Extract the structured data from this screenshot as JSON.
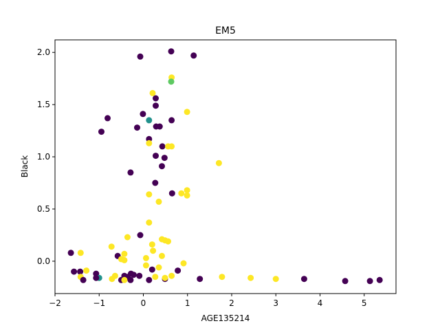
{
  "chart_data": {
    "type": "scatter",
    "title": "EM5",
    "xlabel": "AGE135214",
    "ylabel": "Black",
    "xlim": [
      -2.0,
      5.72
    ],
    "ylim": [
      -0.31,
      2.12
    ],
    "grid": false,
    "x_ticks": [
      "−2",
      "−1",
      "0",
      "1",
      "2",
      "3",
      "4",
      "5"
    ],
    "x_tick_values": [
      -2,
      -1,
      0,
      1,
      2,
      3,
      4,
      5
    ],
    "y_ticks": [
      "0.0",
      "0.5",
      "1.0",
      "1.5",
      "2.0"
    ],
    "y_tick_values": [
      0.0,
      0.5,
      1.0,
      1.5,
      2.0
    ],
    "colors": {
      "purple": "#440154",
      "teal": "#21918c",
      "green": "#5ec962",
      "yellow": "#fde725"
    },
    "points": [
      {
        "x": 0.63,
        "y": 2.01,
        "c": "purple"
      },
      {
        "x": 1.14,
        "y": 1.97,
        "c": "purple"
      },
      {
        "x": -0.07,
        "y": 1.96,
        "c": "purple"
      },
      {
        "x": 0.64,
        "y": 1.76,
        "c": "yellow"
      },
      {
        "x": 0.63,
        "y": 1.72,
        "c": "green"
      },
      {
        "x": 0.21,
        "y": 1.61,
        "c": "yellow"
      },
      {
        "x": 0.28,
        "y": 1.56,
        "c": "purple"
      },
      {
        "x": 0.28,
        "y": 1.49,
        "c": "purple"
      },
      {
        "x": 0.99,
        "y": 1.43,
        "c": "yellow"
      },
      {
        "x": -0.01,
        "y": 1.41,
        "c": "purple"
      },
      {
        "x": -0.81,
        "y": 1.37,
        "c": "purple"
      },
      {
        "x": 0.13,
        "y": 1.35,
        "c": "teal"
      },
      {
        "x": 0.64,
        "y": 1.35,
        "c": "purple"
      },
      {
        "x": 0.29,
        "y": 1.29,
        "c": "purple"
      },
      {
        "x": 0.37,
        "y": 1.29,
        "c": "purple"
      },
      {
        "x": -0.14,
        "y": 1.28,
        "c": "purple"
      },
      {
        "x": -0.95,
        "y": 1.24,
        "c": "purple"
      },
      {
        "x": 0.13,
        "y": 1.17,
        "c": "purple"
      },
      {
        "x": 0.13,
        "y": 1.13,
        "c": "yellow"
      },
      {
        "x": 0.43,
        "y": 1.1,
        "c": "purple"
      },
      {
        "x": 0.56,
        "y": 1.1,
        "c": "yellow"
      },
      {
        "x": 0.64,
        "y": 1.1,
        "c": "yellow"
      },
      {
        "x": 0.28,
        "y": 1.01,
        "c": "purple"
      },
      {
        "x": 0.48,
        "y": 0.99,
        "c": "purple"
      },
      {
        "x": 1.71,
        "y": 0.94,
        "c": "yellow"
      },
      {
        "x": 0.42,
        "y": 0.91,
        "c": "purple"
      },
      {
        "x": -0.29,
        "y": 0.85,
        "c": "purple"
      },
      {
        "x": 0.27,
        "y": 0.75,
        "c": "purple"
      },
      {
        "x": 0.99,
        "y": 0.68,
        "c": "yellow"
      },
      {
        "x": 0.86,
        "y": 0.65,
        "c": "yellow"
      },
      {
        "x": 0.65,
        "y": 0.65,
        "c": "purple"
      },
      {
        "x": 0.13,
        "y": 0.64,
        "c": "yellow"
      },
      {
        "x": 0.99,
        "y": 0.63,
        "c": "yellow"
      },
      {
        "x": 0.35,
        "y": 0.57,
        "c": "yellow"
      },
      {
        "x": 0.13,
        "y": 0.37,
        "c": "yellow"
      },
      {
        "x": -0.07,
        "y": 0.25,
        "c": "purple"
      },
      {
        "x": -0.36,
        "y": 0.23,
        "c": "yellow"
      },
      {
        "x": 0.42,
        "y": 0.21,
        "c": "yellow"
      },
      {
        "x": 0.49,
        "y": 0.2,
        "c": "yellow"
      },
      {
        "x": 0.56,
        "y": 0.19,
        "c": "yellow"
      },
      {
        "x": 0.2,
        "y": 0.16,
        "c": "yellow"
      },
      {
        "x": -0.72,
        "y": 0.14,
        "c": "yellow"
      },
      {
        "x": 0.22,
        "y": 0.1,
        "c": "yellow"
      },
      {
        "x": -1.64,
        "y": 0.08,
        "c": "purple"
      },
      {
        "x": -1.42,
        "y": 0.08,
        "c": "yellow"
      },
      {
        "x": -0.43,
        "y": 0.07,
        "c": "yellow"
      },
      {
        "x": 0.42,
        "y": 0.05,
        "c": "yellow"
      },
      {
        "x": -0.58,
        "y": 0.05,
        "c": "purple"
      },
      {
        "x": 0.06,
        "y": 0.03,
        "c": "yellow"
      },
      {
        "x": -0.5,
        "y": 0.02,
        "c": "yellow"
      },
      {
        "x": -0.43,
        "y": 0.01,
        "c": "yellow"
      },
      {
        "x": 0.06,
        "y": -0.04,
        "c": "yellow"
      },
      {
        "x": 0.91,
        "y": -0.02,
        "c": "yellow"
      },
      {
        "x": 0.35,
        "y": -0.06,
        "c": "yellow"
      },
      {
        "x": 0.2,
        "y": -0.08,
        "c": "purple"
      },
      {
        "x": 0.78,
        "y": -0.09,
        "c": "purple"
      },
      {
        "x": -1.57,
        "y": -0.1,
        "c": "purple"
      },
      {
        "x": -1.29,
        "y": -0.09,
        "c": "yellow"
      },
      {
        "x": -1.43,
        "y": -0.1,
        "c": "purple"
      },
      {
        "x": -1.07,
        "y": -0.12,
        "c": "purple"
      },
      {
        "x": -0.28,
        "y": -0.12,
        "c": "purple"
      },
      {
        "x": -0.22,
        "y": -0.13,
        "c": "purple"
      },
      {
        "x": -0.64,
        "y": -0.14,
        "c": "yellow"
      },
      {
        "x": -0.43,
        "y": -0.14,
        "c": "purple"
      },
      {
        "x": -0.09,
        "y": -0.14,
        "c": "purple"
      },
      {
        "x": -1.42,
        "y": -0.15,
        "c": "yellow"
      },
      {
        "x": -1.0,
        "y": -0.16,
        "c": "teal"
      },
      {
        "x": -1.07,
        "y": -0.16,
        "c": "purple"
      },
      {
        "x": -0.36,
        "y": -0.15,
        "c": "purple"
      },
      {
        "x": 0.27,
        "y": -0.15,
        "c": "yellow"
      },
      {
        "x": 0.49,
        "y": -0.17,
        "c": "purple"
      },
      {
        "x": 0.49,
        "y": -0.16,
        "c": "yellow"
      },
      {
        "x": 0.64,
        "y": -0.14,
        "c": "yellow"
      },
      {
        "x": 1.78,
        "y": -0.15,
        "c": "yellow"
      },
      {
        "x": 2.43,
        "y": -0.16,
        "c": "yellow"
      },
      {
        "x": 3.0,
        "y": -0.17,
        "c": "yellow"
      },
      {
        "x": -0.71,
        "y": -0.17,
        "c": "yellow"
      },
      {
        "x": -0.5,
        "y": -0.18,
        "c": "purple"
      },
      {
        "x": -0.43,
        "y": -0.18,
        "c": "yellow"
      },
      {
        "x": -0.29,
        "y": -0.18,
        "c": "purple"
      },
      {
        "x": 0.13,
        "y": -0.18,
        "c": "purple"
      },
      {
        "x": -1.36,
        "y": -0.18,
        "c": "purple"
      },
      {
        "x": 1.28,
        "y": -0.17,
        "c": "purple"
      },
      {
        "x": 3.64,
        "y": -0.17,
        "c": "purple"
      },
      {
        "x": 4.57,
        "y": -0.19,
        "c": "purple"
      },
      {
        "x": 5.13,
        "y": -0.19,
        "c": "purple"
      },
      {
        "x": 5.35,
        "y": -0.18,
        "c": "purple"
      }
    ]
  }
}
